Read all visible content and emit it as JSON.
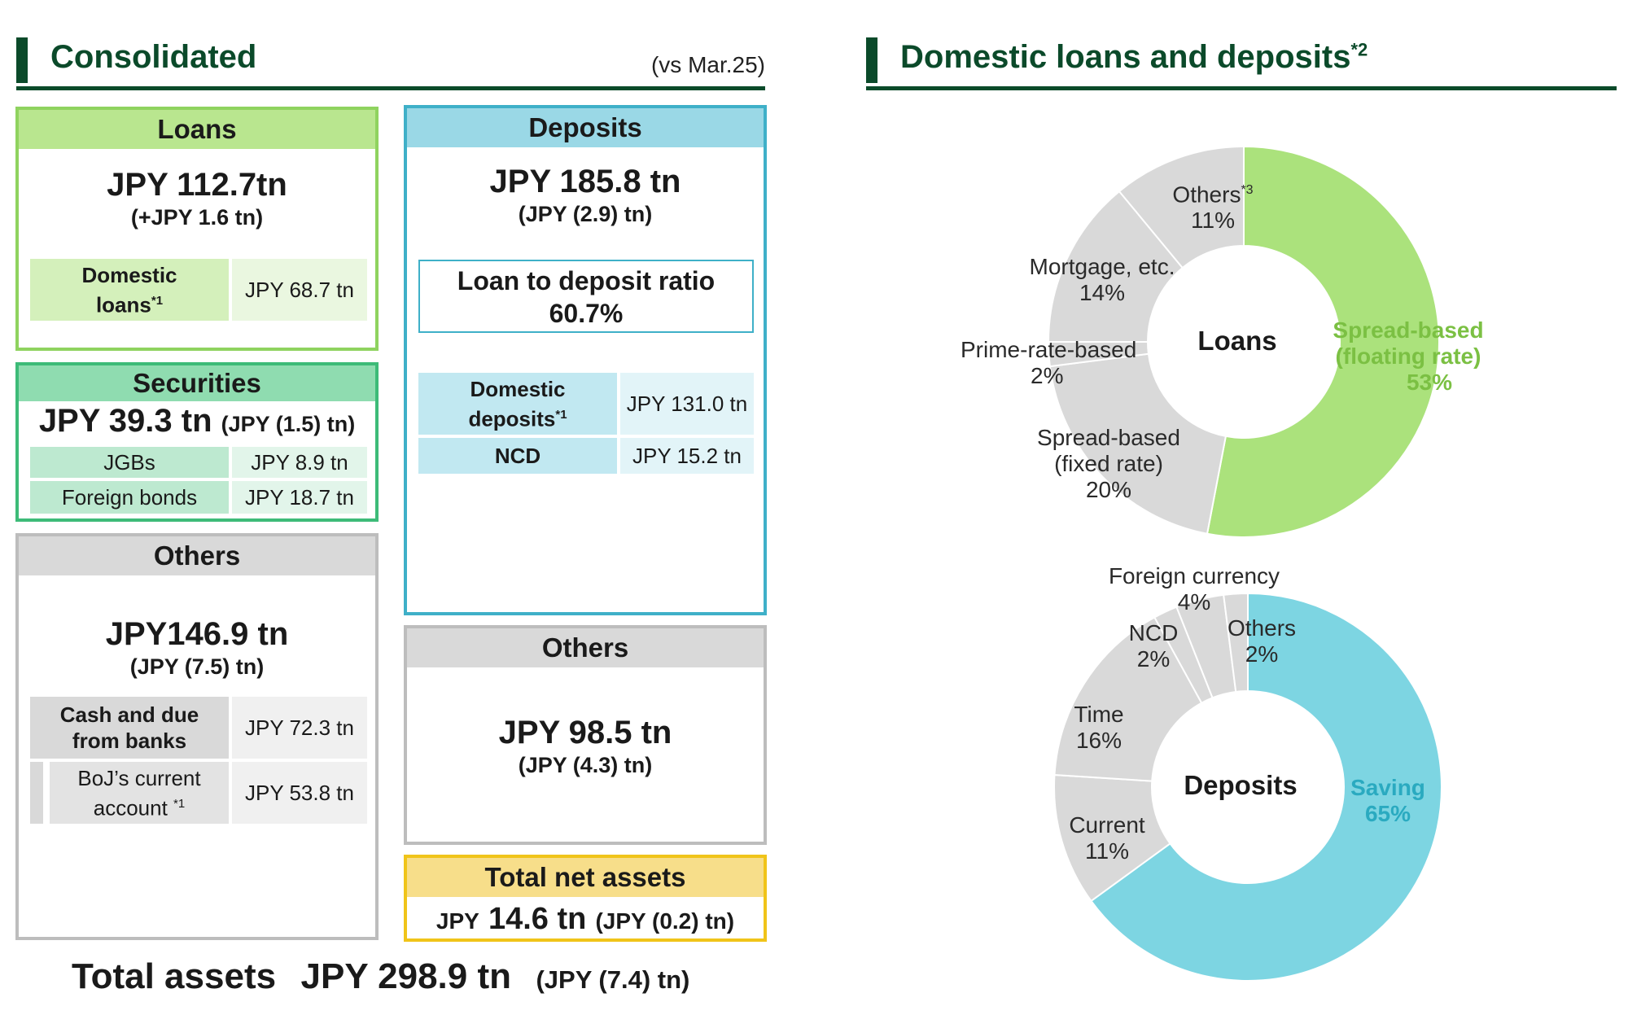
{
  "left_header": {
    "title": "Consolidated",
    "note": "(vs Mar.25)"
  },
  "right_header": {
    "title": "Domestic loans and deposits",
    "title_sup": "*2"
  },
  "loans": {
    "header": "Loans",
    "amount": "JPY 112.7tn",
    "change": "(+JPY 1.6 tn)",
    "rows": [
      {
        "label": "Domestic loans",
        "sup": "*1",
        "value": "JPY 68.7 tn"
      }
    ]
  },
  "securities": {
    "header": "Securities",
    "amount": "JPY 39.3 tn",
    "change": "(JPY (1.5) tn)",
    "rows": [
      {
        "label": "JGBs",
        "value": "JPY 8.9 tn"
      },
      {
        "label": "Foreign bonds",
        "value": "JPY 18.7 tn"
      }
    ]
  },
  "others_assets": {
    "header": "Others",
    "amount": "JPY146.9 tn",
    "change": "(JPY (7.5) tn)",
    "rows": [
      {
        "label": "Cash and due from banks",
        "value": "JPY 72.3 tn"
      },
      {
        "label": "BoJ’s current account",
        "sup": "*1",
        "value": "JPY 53.8 tn"
      }
    ]
  },
  "deposits": {
    "header": "Deposits",
    "amount": "JPY 185.8 tn",
    "change": "(JPY (2.9) tn)",
    "ldr_label": "Loan to deposit ratio",
    "ldr_value": "60.7%",
    "rows": [
      {
        "label": "Domestic deposits",
        "sup": "*1",
        "value": "JPY 131.0 tn"
      },
      {
        "label": "NCD",
        "value": "JPY 15.2 tn"
      }
    ]
  },
  "others_liab": {
    "header": "Others",
    "amount": "JPY 98.5 tn",
    "change": "(JPY (4.3) tn)"
  },
  "net_assets": {
    "header": "Total net assets",
    "prefix": "JPY",
    "amount": "14.6 tn",
    "change": "(JPY (0.2) tn)"
  },
  "total_assets": {
    "label": "Total assets",
    "amount": "JPY 298.9 tn",
    "change": "(JPY (7.4) tn)"
  },
  "colors": {
    "dark_green": "#0b4a2a",
    "loans_border": "#8fd35f",
    "loans_header": "#b9e68f",
    "loans_cell": "#d4f0bb",
    "sec_border": "#3dbb78",
    "sec_header": "#8fdcb0",
    "sec_cell": "#bde9d0",
    "others_border": "#bdbdbd",
    "others_header": "#d9d9d9",
    "others_cell": "#e3e3e3",
    "dep_border": "#3fb0c8",
    "dep_header": "#9ad8e6",
    "dep_cell": "#c1e8f1",
    "net_border": "#f0c419",
    "net_header": "#f7de8a",
    "loan_highlight": "#abe27c",
    "deposit_highlight": "#7dd5e2",
    "grey_slice": "#d9d9d9"
  },
  "chart_data": [
    {
      "type": "pie",
      "center_label": "Loans",
      "slices": [
        {
          "label": "Spread-based (floating rate)",
          "value": 53,
          "pct": "53%",
          "color": "#abe27c"
        },
        {
          "label": "Spread-based (fixed rate)",
          "value": 20,
          "pct": "20%",
          "color": "#d9d9d9"
        },
        {
          "label": "Prime-rate-based",
          "value": 2,
          "pct": "2%",
          "color": "#d9d9d9"
        },
        {
          "label": "Mortgage, etc.",
          "value": 14,
          "pct": "14%",
          "color": "#d9d9d9"
        },
        {
          "label": "Others",
          "sup": "*3",
          "value": 11,
          "pct": "11%",
          "color": "#d9d9d9"
        }
      ]
    },
    {
      "type": "pie",
      "center_label": "Deposits",
      "slices": [
        {
          "label": "Saving",
          "value": 65,
          "pct": "65%",
          "color": "#7dd5e2"
        },
        {
          "label": "Current",
          "value": 11,
          "pct": "11%",
          "color": "#d9d9d9"
        },
        {
          "label": "Time",
          "value": 16,
          "pct": "16%",
          "color": "#d9d9d9"
        },
        {
          "label": "NCD",
          "value": 2,
          "pct": "2%",
          "color": "#d9d9d9"
        },
        {
          "label": "Foreign currency",
          "value": 4,
          "pct": "4%",
          "color": "#d9d9d9"
        },
        {
          "label": "Others",
          "value": 2,
          "pct": "2%",
          "color": "#d9d9d9"
        }
      ]
    }
  ]
}
